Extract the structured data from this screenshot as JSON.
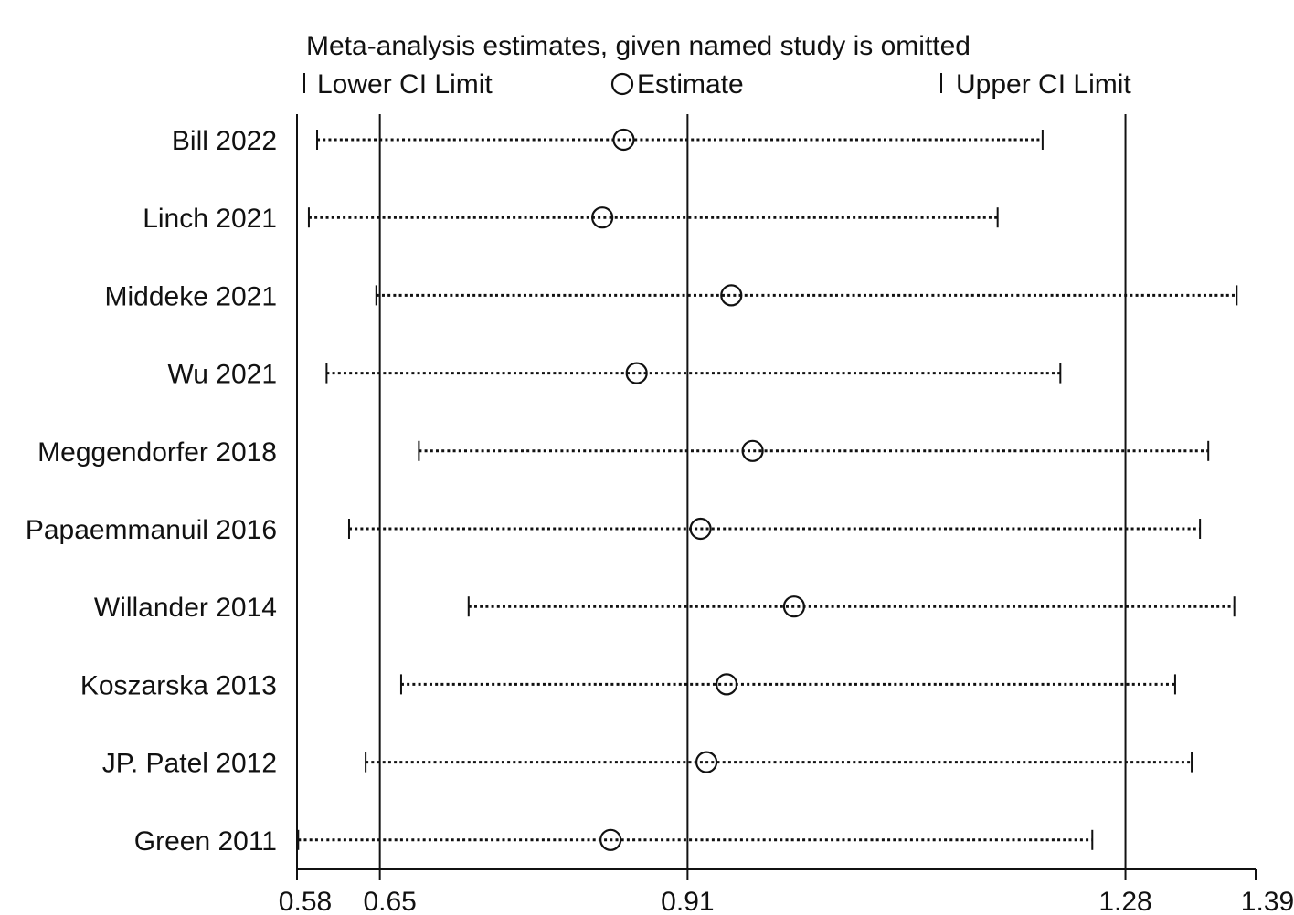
{
  "chart_data": {
    "type": "forest",
    "title": "Meta-analysis estimates, given named study is omitted",
    "legend": {
      "lower": "Lower CI Limit",
      "estimate": "Estimate",
      "upper": "Upper CI Limit",
      "placement": "top"
    },
    "xlim": [
      0.58,
      1.39
    ],
    "x_tick_labels": [
      "0.58",
      "0.65",
      "0.91",
      "1.28",
      "1.39"
    ],
    "x_tick_values": [
      0.58,
      0.65,
      0.91,
      1.28,
      1.39
    ],
    "reference_lines": [
      0.65,
      0.91,
      1.28
    ],
    "studies": [
      {
        "name": "Bill 2022",
        "lower": 0.597,
        "estimate": 0.856,
        "upper": 1.21
      },
      {
        "name": "Linch 2021",
        "lower": 0.59,
        "estimate": 0.838,
        "upper": 1.172
      },
      {
        "name": "Middeke 2021",
        "lower": 0.647,
        "estimate": 0.947,
        "upper": 1.374
      },
      {
        "name": "Wu 2021",
        "lower": 0.605,
        "estimate": 0.867,
        "upper": 1.225
      },
      {
        "name": "Meggendorfer 2018",
        "lower": 0.683,
        "estimate": 0.965,
        "upper": 1.35
      },
      {
        "name": "Papaemmanuil 2016",
        "lower": 0.624,
        "estimate": 0.921,
        "upper": 1.343
      },
      {
        "name": "Willander 2014",
        "lower": 0.725,
        "estimate": 1.0,
        "upper": 1.372
      },
      {
        "name": "Koszarska 2013",
        "lower": 0.668,
        "estimate": 0.943,
        "upper": 1.322
      },
      {
        "name": "JP. Patel 2012",
        "lower": 0.638,
        "estimate": 0.926,
        "upper": 1.336
      },
      {
        "name": "Green 2011",
        "lower": 0.581,
        "estimate": 0.845,
        "upper": 1.252
      }
    ]
  }
}
